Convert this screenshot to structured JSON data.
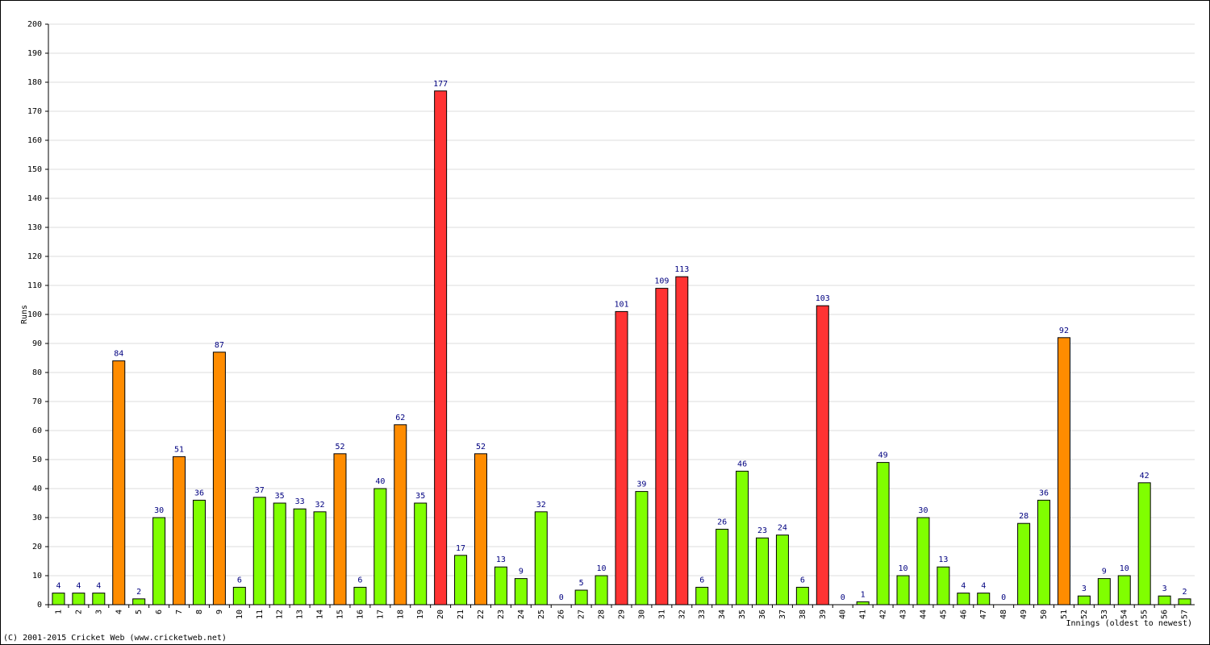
{
  "chart_data": {
    "type": "bar",
    "y_label": "Runs",
    "x_label": "Innings (oldest to newest)",
    "footer": "(C) 2001-2015 Cricket Web (www.cricketweb.net)",
    "categories": [
      "1",
      "2",
      "3",
      "4",
      "5",
      "6",
      "7",
      "8",
      "9",
      "10",
      "11",
      "12",
      "13",
      "14",
      "15",
      "16",
      "17",
      "18",
      "19",
      "20",
      "21",
      "22",
      "23",
      "24",
      "25",
      "26",
      "27",
      "28",
      "29",
      "30",
      "31",
      "32",
      "33",
      "34",
      "35",
      "36",
      "37",
      "38",
      "39",
      "40",
      "41",
      "42",
      "43",
      "44",
      "45",
      "46",
      "47",
      "48",
      "49",
      "50",
      "51",
      "52",
      "53",
      "54",
      "55",
      "56",
      "57"
    ],
    "values": [
      4,
      4,
      4,
      84,
      2,
      30,
      51,
      36,
      87,
      6,
      37,
      35,
      33,
      32,
      52,
      6,
      40,
      62,
      35,
      177,
      17,
      52,
      13,
      9,
      32,
      0,
      5,
      10,
      101,
      39,
      109,
      113,
      6,
      26,
      46,
      23,
      24,
      6,
      103,
      0,
      1,
      49,
      10,
      30,
      13,
      4,
      4,
      0,
      28,
      36,
      92,
      3,
      9,
      10,
      42,
      3,
      2
    ],
    "colors": [
      "#80ff00",
      "#80ff00",
      "#80ff00",
      "#ff8c00",
      "#80ff00",
      "#80ff00",
      "#ff8c00",
      "#80ff00",
      "#ff8c00",
      "#80ff00",
      "#80ff00",
      "#80ff00",
      "#80ff00",
      "#80ff00",
      "#ff8c00",
      "#80ff00",
      "#80ff00",
      "#ff8c00",
      "#80ff00",
      "#ff3333",
      "#80ff00",
      "#ff8c00",
      "#80ff00",
      "#80ff00",
      "#80ff00",
      "#80ff00",
      "#80ff00",
      "#80ff00",
      "#ff3333",
      "#80ff00",
      "#ff3333",
      "#ff3333",
      "#80ff00",
      "#80ff00",
      "#80ff00",
      "#80ff00",
      "#80ff00",
      "#80ff00",
      "#ff3333",
      "#80ff00",
      "#80ff00",
      "#80ff00",
      "#80ff00",
      "#80ff00",
      "#80ff00",
      "#80ff00",
      "#80ff00",
      "#80ff00",
      "#80ff00",
      "#80ff00",
      "#ff8c00",
      "#80ff00",
      "#80ff00",
      "#80ff00",
      "#80ff00",
      "#80ff00",
      "#80ff00"
    ],
    "ylim": [
      0,
      200
    ],
    "yticks": [
      0,
      10,
      20,
      30,
      40,
      50,
      60,
      70,
      80,
      90,
      100,
      110,
      120,
      130,
      140,
      150,
      160,
      170,
      180,
      190,
      200
    ],
    "grid": true
  }
}
